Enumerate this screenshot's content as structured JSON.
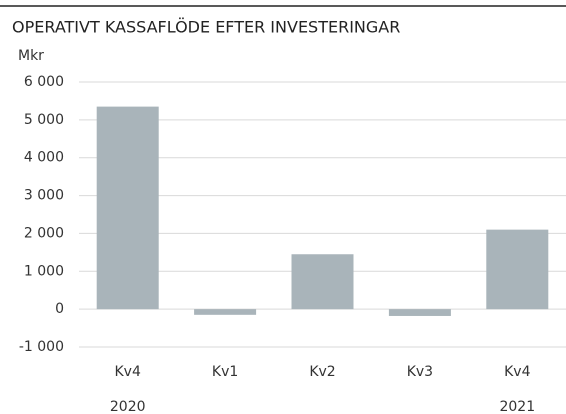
{
  "chart_data": {
    "type": "bar",
    "title": "OPERATIVT KASSAFLÖDE EFTER INVESTERINGAR",
    "y_label": "Mkr",
    "categories": [
      "Kv4",
      "Kv1",
      "Kv2",
      "Kv3",
      "Kv4"
    ],
    "years": [
      "2020",
      null,
      null,
      null,
      "2021"
    ],
    "values": [
      5350,
      -150,
      1450,
      -180,
      2100
    ],
    "color": "#a9b4ba",
    "ylim": [
      -1000,
      6000
    ],
    "yticks": [
      {
        "value": 6000,
        "label": "6 000"
      },
      {
        "value": 5000,
        "label": "5 000"
      },
      {
        "value": 4000,
        "label": "4 000"
      },
      {
        "value": 3000,
        "label": "3 000"
      },
      {
        "value": 2000,
        "label": "2 000"
      },
      {
        "value": 1000,
        "label": "1 000"
      },
      0,
      {
        "value": -1000,
        "label": "-1 000"
      }
    ],
    "grid": true
  }
}
